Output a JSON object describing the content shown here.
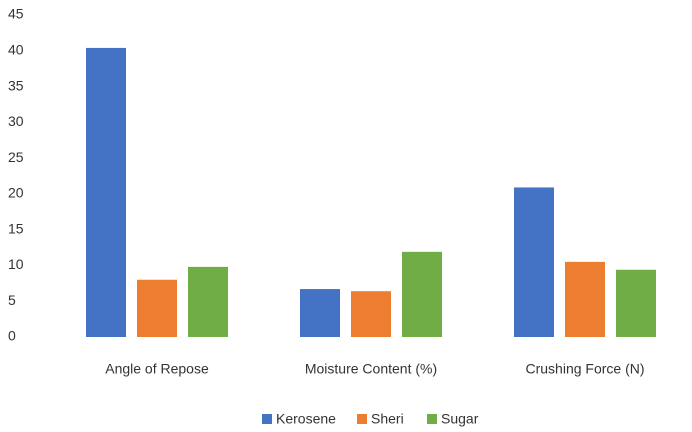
{
  "chart_data": {
    "type": "bar",
    "categories": [
      "Angle of Repose",
      "Moisture Content (%)",
      "Crushing Force (N)"
    ],
    "series": [
      {
        "name": "Kerosene",
        "color": "#4472c4",
        "values": [
          40.4,
          6.7,
          20.9
        ]
      },
      {
        "name": "Sheri",
        "color": "#ed7d31",
        "values": [
          8.0,
          6.4,
          10.5
        ]
      },
      {
        "name": "Sugar",
        "color": "#70ad47",
        "values": [
          9.8,
          11.9,
          9.4
        ]
      }
    ],
    "ylim": [
      0,
      45
    ],
    "yticks": [
      0,
      5,
      10,
      15,
      20,
      25,
      30,
      35,
      40,
      45
    ],
    "grid": false,
    "legend": "bottom"
  }
}
